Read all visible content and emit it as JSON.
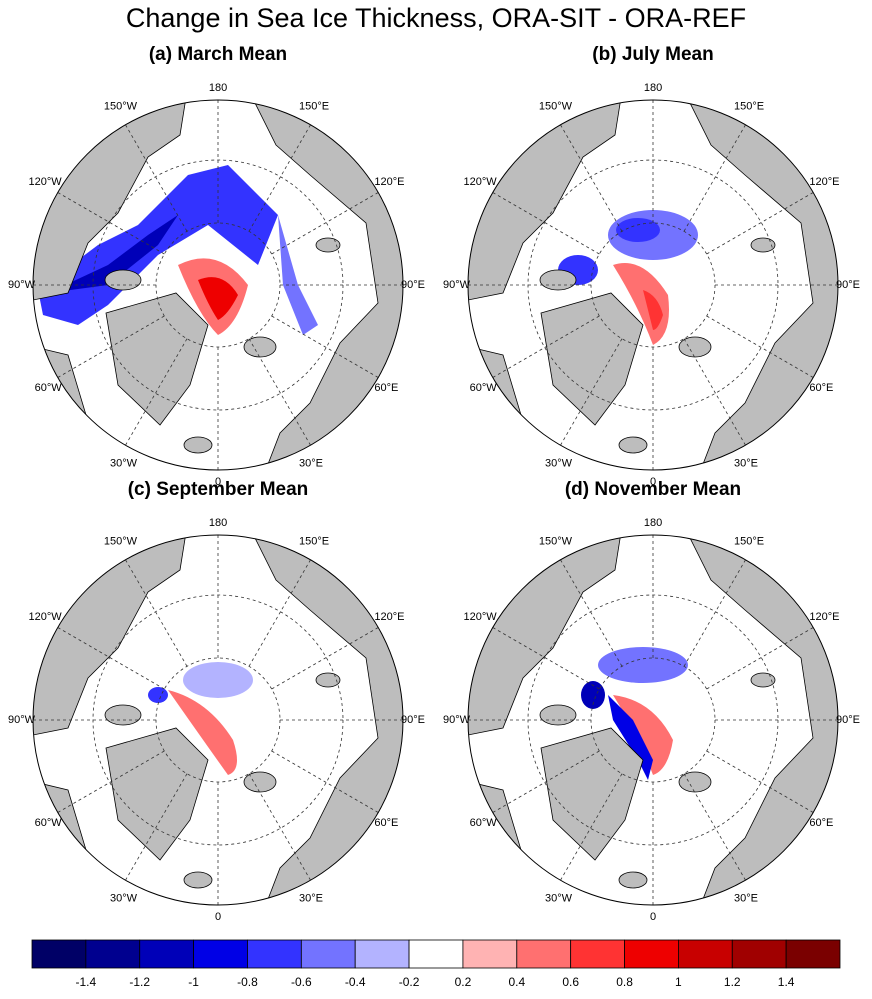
{
  "title": "Change in Sea Ice Thickness, ORA-SIT - ORA-REF",
  "panels": [
    {
      "title": "(a) March Mean"
    },
    {
      "title": "(b) July Mean"
    },
    {
      "title": "(c) September Mean"
    },
    {
      "title": "(d) November Mean"
    }
  ],
  "lon_labels": [
    "180",
    "150°E",
    "120°E",
    "90°E",
    "60°E",
    "30°E",
    "0",
    "30°W",
    "60°W",
    "90°W",
    "120°W",
    "150°W"
  ],
  "colorbar": {
    "colors": [
      "#000066",
      "#00008f",
      "#0000b8",
      "#0000e6",
      "#3333ff",
      "#7373ff",
      "#b3b3ff",
      "#ffffff",
      "#ffb3b3",
      "#ff7070",
      "#ff3333",
      "#ee0000",
      "#c80000",
      "#a00000",
      "#7a0000"
    ],
    "labels": [
      -1.4,
      -1.2,
      -1,
      -0.8,
      -0.6,
      -0.4,
      -0.2,
      0.2,
      0.4,
      0.6,
      0.8,
      1,
      1.2,
      1.4
    ]
  }
}
